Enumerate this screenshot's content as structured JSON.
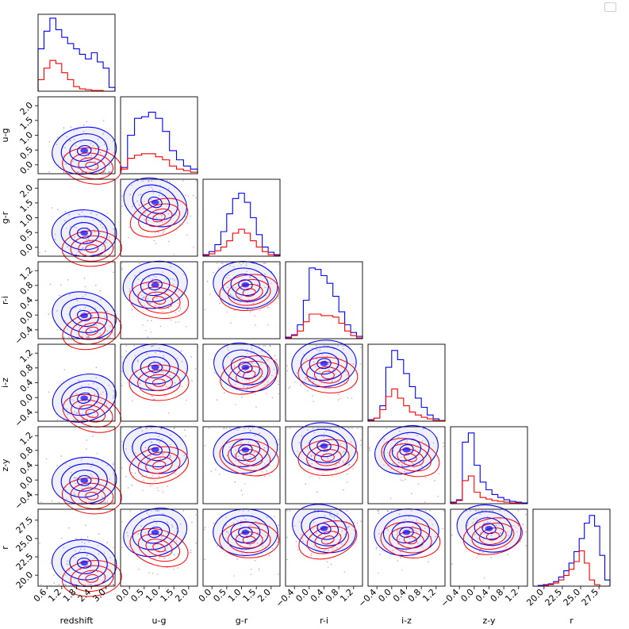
{
  "chart_data": {
    "type": "corner",
    "variables": [
      "redshift",
      "u-g",
      "g-r",
      "r-i",
      "i-z",
      "z-y",
      "r"
    ],
    "ranges": [
      [
        0.0,
        3.0
      ],
      [
        -0.5,
        2.0
      ],
      [
        -0.5,
        2.0
      ],
      [
        -0.5,
        1.5
      ],
      [
        -0.5,
        1.5
      ],
      [
        -0.5,
        1.5
      ],
      [
        18.0,
        29.0
      ]
    ],
    "ticks": {
      "redshift": [
        "0.6",
        "1.2",
        "1.8",
        "2.4",
        "3.0"
      ],
      "u-g": [
        "0.0",
        "0.5",
        "1.0",
        "1.5",
        "2.0"
      ],
      "g-r": [
        "0.0",
        "0.5",
        "1.0",
        "1.5",
        "2.0"
      ],
      "r-i": [
        "−0.4",
        "0.0",
        "0.4",
        "0.8",
        "1.2"
      ],
      "i-z": [
        "−0.4",
        "0.0",
        "0.4",
        "0.8",
        "1.2"
      ],
      "z-y": [
        "−0.4",
        "0.0",
        "0.4",
        "0.8",
        "1.2"
      ],
      "r": [
        "20.0",
        "22.5",
        "25.0",
        "27.5"
      ]
    },
    "series": [
      {
        "color": "#0000ff"
      },
      {
        "color": "#ff0000"
      }
    ],
    "histograms": {
      "redshift": {
        "blue": [
          0.55,
          0.78,
          0.95,
          0.8,
          0.7,
          0.62,
          0.55,
          0.48,
          0.42,
          0.5,
          0.38,
          0.3,
          0.05
        ],
        "red": [
          0.15,
          0.3,
          0.4,
          0.36,
          0.24,
          0.15,
          0.06,
          0.03,
          0.02,
          0.01,
          0.01,
          0.0,
          0.0
        ]
      },
      "u-g": {
        "blue": [
          0.08,
          0.5,
          0.72,
          0.74,
          0.8,
          0.72,
          0.55,
          0.3,
          0.18,
          0.1,
          0.06
        ],
        "red": [
          0.06,
          0.2,
          0.24,
          0.26,
          0.26,
          0.22,
          0.18,
          0.1,
          0.06,
          0.04,
          0.02
        ]
      },
      "g-r": {
        "blue": [
          0.02,
          0.06,
          0.15,
          0.32,
          0.55,
          0.75,
          0.82,
          0.7,
          0.5,
          0.28,
          0.12,
          0.05,
          0.02
        ],
        "red": [
          0.01,
          0.03,
          0.07,
          0.12,
          0.2,
          0.3,
          0.35,
          0.3,
          0.2,
          0.12,
          0.06,
          0.02,
          0.01
        ]
      },
      "r-i": {
        "blue": [
          0.02,
          0.05,
          0.18,
          0.5,
          0.92,
          0.9,
          0.82,
          0.72,
          0.55,
          0.35,
          0.18,
          0.08,
          0.03
        ],
        "red": [
          0.01,
          0.04,
          0.1,
          0.22,
          0.32,
          0.32,
          0.3,
          0.3,
          0.28,
          0.2,
          0.1,
          0.04,
          0.01
        ]
      },
      "i-z": {
        "blue": [
          0.02,
          0.04,
          0.2,
          0.7,
          0.92,
          0.8,
          0.62,
          0.45,
          0.3,
          0.18,
          0.08,
          0.03,
          0.01
        ],
        "red": [
          0.01,
          0.04,
          0.15,
          0.32,
          0.42,
          0.3,
          0.2,
          0.12,
          0.08,
          0.05,
          0.03,
          0.01,
          0.01
        ]
      },
      "z-y": {
        "blue": [
          0.02,
          0.05,
          0.8,
          0.92,
          0.5,
          0.28,
          0.18,
          0.12,
          0.08,
          0.05,
          0.03,
          0.02,
          0.01
        ],
        "red": [
          0.01,
          0.04,
          0.3,
          0.36,
          0.15,
          0.08,
          0.06,
          0.04,
          0.03,
          0.02,
          0.01,
          0.01,
          0.0
        ]
      },
      "r": {
        "blue": [
          0.0,
          0.01,
          0.02,
          0.03,
          0.06,
          0.12,
          0.2,
          0.3,
          0.45,
          0.62,
          0.82,
          0.92,
          0.78,
          0.4,
          0.08
        ],
        "red": [
          0.0,
          0.0,
          0.01,
          0.02,
          0.04,
          0.08,
          0.14,
          0.22,
          0.32,
          0.46,
          0.3,
          0.08,
          0.02,
          0.0,
          0.0
        ]
      }
    },
    "density_centers": {
      "blue": [
        [
          0.6,
          0.7
        ],
        [
          0.45,
          0.3
        ],
        [
          0.55,
          0.3
        ],
        [
          0.5,
          0.25
        ],
        [
          0.5,
          0.3
        ],
        [
          0.5,
          0.25
        ]
      ],
      "red": [
        [
          0.7,
          0.9
        ],
        [
          0.5,
          0.5
        ],
        [
          0.6,
          0.4
        ],
        [
          0.55,
          0.4
        ],
        [
          0.55,
          0.4
        ],
        [
          0.55,
          0.35
        ]
      ]
    }
  },
  "legend": {
    "label": ""
  }
}
